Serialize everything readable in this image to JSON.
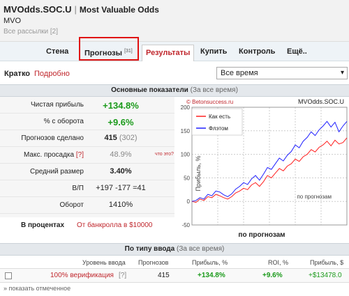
{
  "header": {
    "title": "MVOdds.SOC.U",
    "separator": "|",
    "subtitle": "Most Valuable Odds",
    "short_name": "MVO",
    "all_mailings": "Все рассылки [2]"
  },
  "tabs": [
    {
      "label": "Стена"
    },
    {
      "label": "Прогнозы",
      "badge": "[31]"
    },
    {
      "label": "Результаты"
    },
    {
      "label": "Купить"
    },
    {
      "label": "Контроль"
    },
    {
      "label": "Ещё.."
    }
  ],
  "view_toggle": {
    "brief": "Кратко",
    "detailed": "Подробно"
  },
  "period_select": {
    "value": "Все время",
    "arrow": "▾"
  },
  "main_section": {
    "title": "Основные показатели",
    "note": "(За все время)"
  },
  "stats": [
    {
      "label": "Чистая прибыль",
      "value": "+134.8%"
    },
    {
      "label": "% с оборота",
      "value": "+9.6%"
    },
    {
      "label": "Прогнозов сделано",
      "value": "415",
      "extra": "(302)"
    },
    {
      "label": "Макс. просадка",
      "help": "[?]",
      "value": "48.9%",
      "link": "что это?"
    },
    {
      "label": "Средний размер",
      "value": "3.40%"
    },
    {
      "label": "В/П",
      "value": "+197 -177 =41"
    },
    {
      "label": "Оборот",
      "value": "1410%"
    }
  ],
  "percent_row": {
    "label": "В процентах",
    "link": "От банкролла в $10000"
  },
  "chart_data": {
    "type": "line",
    "source_text": "© Betonsuccess.ru",
    "brand_text": "MVOdds.SOC.U",
    "ylabel": "Прибыль, %",
    "xlabel": "по прогнозам",
    "inner_xlabel": "по прогнозам",
    "ylim": [
      -50,
      200
    ],
    "yticks": [
      "200",
      "150",
      "100",
      "50",
      "0",
      "-50"
    ],
    "legend_position": "top-left",
    "grid": true,
    "series": [
      {
        "name": "Как есть",
        "color": "#ff2020",
        "values": [
          0,
          -2,
          5,
          2,
          10,
          8,
          15,
          12,
          8,
          5,
          10,
          18,
          22,
          28,
          25,
          35,
          40,
          32,
          42,
          55,
          50,
          60,
          70,
          65,
          75,
          80,
          90,
          85,
          95,
          100,
          110,
          105,
          115,
          120,
          128,
          118,
          130,
          122,
          125,
          135
        ]
      },
      {
        "name": "Флэтом",
        "color": "#2020ff",
        "values": [
          0,
          2,
          8,
          5,
          15,
          12,
          22,
          20,
          14,
          10,
          16,
          26,
          32,
          40,
          36,
          48,
          55,
          45,
          58,
          72,
          68,
          80,
          92,
          86,
          98,
          106,
          120,
          114,
          128,
          136,
          148,
          140,
          152,
          160,
          170,
          158,
          168,
          148,
          160,
          170
        ]
      }
    ]
  },
  "type_section": {
    "title": "По типу ввода",
    "note": "(За все время)"
  },
  "type_table": {
    "headers": [
      "Уровень ввода",
      "Прогнозов",
      "Прибыль, %",
      "ROI, %",
      "Прибыль, $"
    ],
    "row": {
      "level": "100% верификация",
      "help": "[?]",
      "count": "415",
      "profit_pct": "+134.8%",
      "roi": "+9.6%",
      "profit_usd": "+$13478.0"
    }
  },
  "show_marked": "» показать отмеченное",
  "colors": {
    "accent": "#c0272d",
    "positive": "#1a9a1a",
    "highlight": "#e01010"
  }
}
